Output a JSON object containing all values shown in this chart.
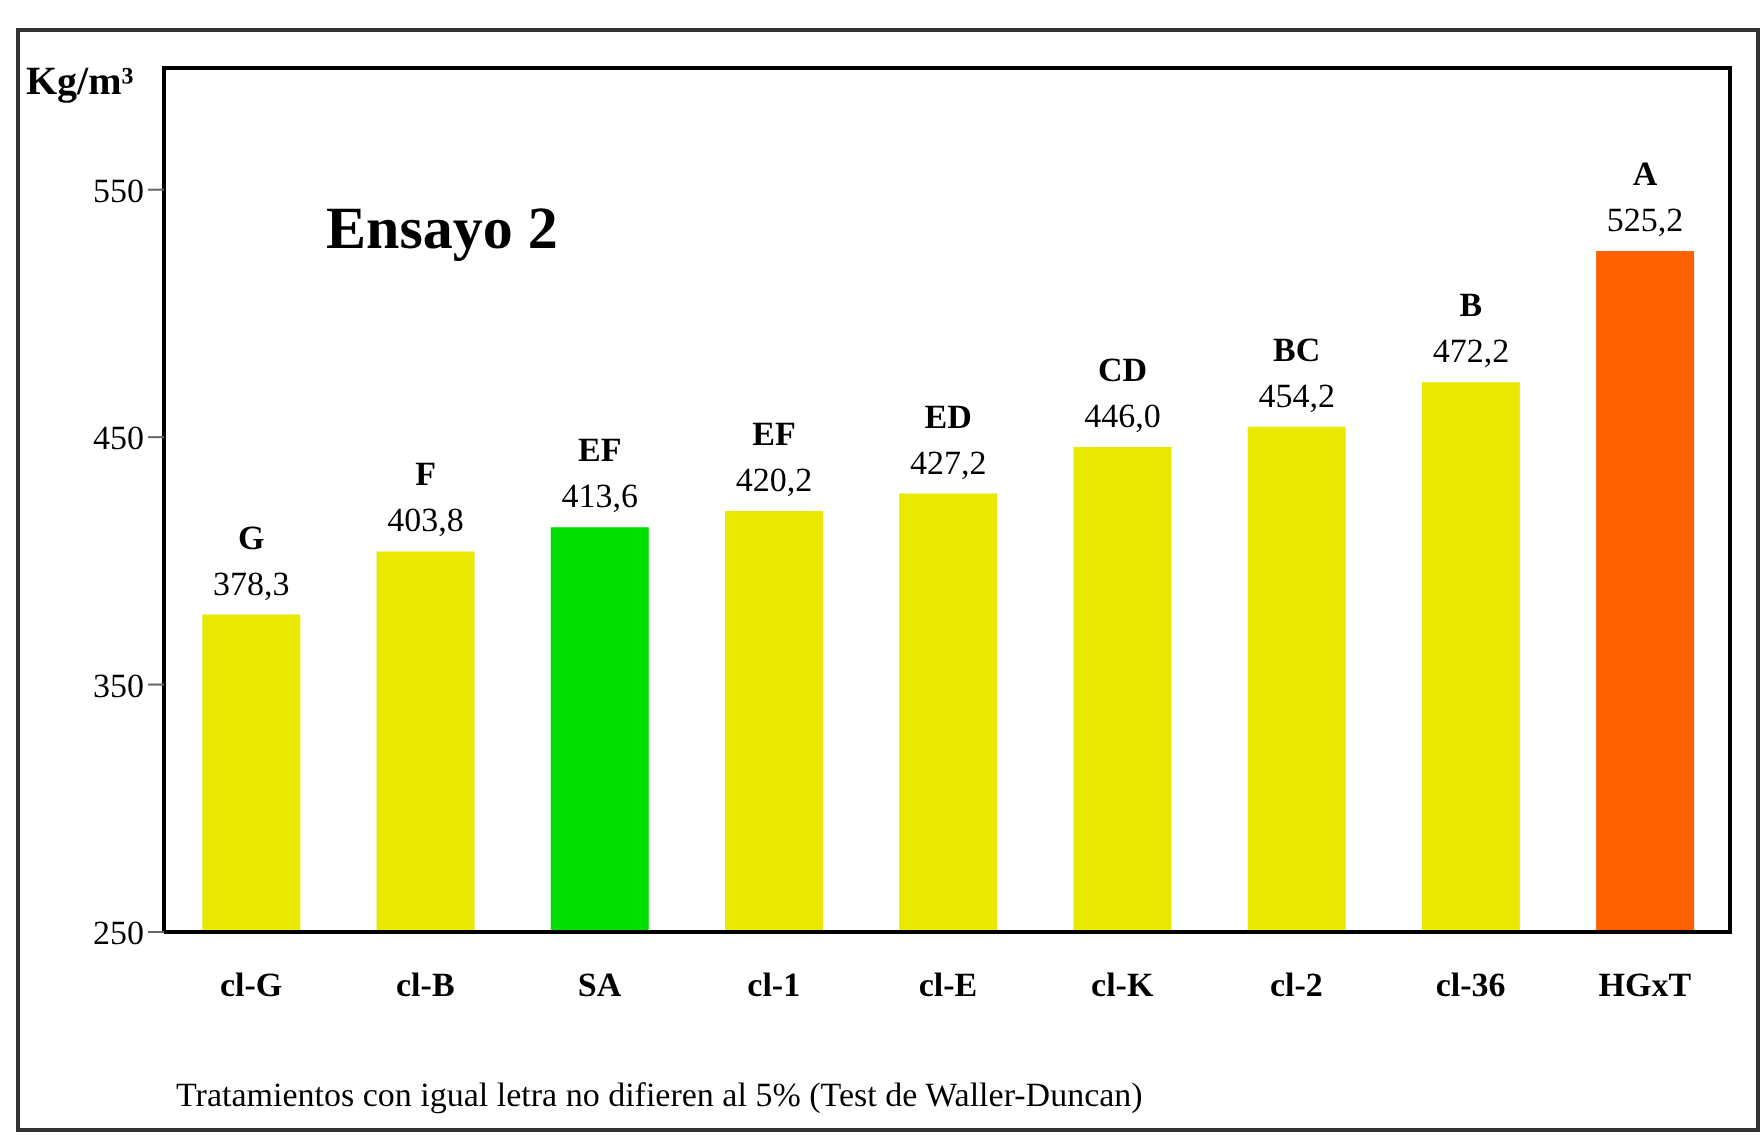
{
  "chart_data": {
    "type": "bar",
    "title": "Ensayo 2",
    "ylabel": "Kg/m³",
    "categories": [
      "cl-G",
      "cl-B",
      "SA",
      "cl-1",
      "cl-E",
      "cl-K",
      "cl-2",
      "cl-36",
      "HGxT"
    ],
    "values": [
      378.3,
      403.8,
      413.6,
      420.2,
      427.2,
      446.0,
      454.2,
      472.2,
      525.2
    ],
    "value_labels": [
      "378,3",
      "403,8",
      "413,6",
      "420,2",
      "427,2",
      "446,0",
      "454,2",
      "472,2",
      "525,2"
    ],
    "colors": [
      "#e8e800",
      "#e8e800",
      "#00dd00",
      "#e8e800",
      "#e8e800",
      "#e8e800",
      "#e8e800",
      "#e8e800",
      "#ff6000"
    ],
    "ylim": [
      250,
      600
    ],
    "yticks": [
      250,
      350,
      450,
      550
    ],
    "annotations": [
      {
        "text": "G",
        "x": "cl-G",
        "y": 378.3
      },
      {
        "text": "F",
        "x": "cl-B",
        "y": 403.8
      },
      {
        "text": "EF",
        "x": "SA",
        "y": 413.6
      },
      {
        "text": "EF",
        "x": "cl-1",
        "y": 420.2
      },
      {
        "text": "ED",
        "x": "cl-E",
        "y": 427.2
      },
      {
        "text": "CD",
        "x": "cl-K",
        "y": 446.0
      },
      {
        "text": "BC",
        "x": "cl-2",
        "y": 454.2
      },
      {
        "text": "B",
        "x": "cl-36",
        "y": 472.2
      },
      {
        "text": "A",
        "x": "HGxT",
        "y": 525.2
      },
      "Tratamientos con igual letra no difieren al 5% (Test de Waller-Duncan)"
    ]
  }
}
